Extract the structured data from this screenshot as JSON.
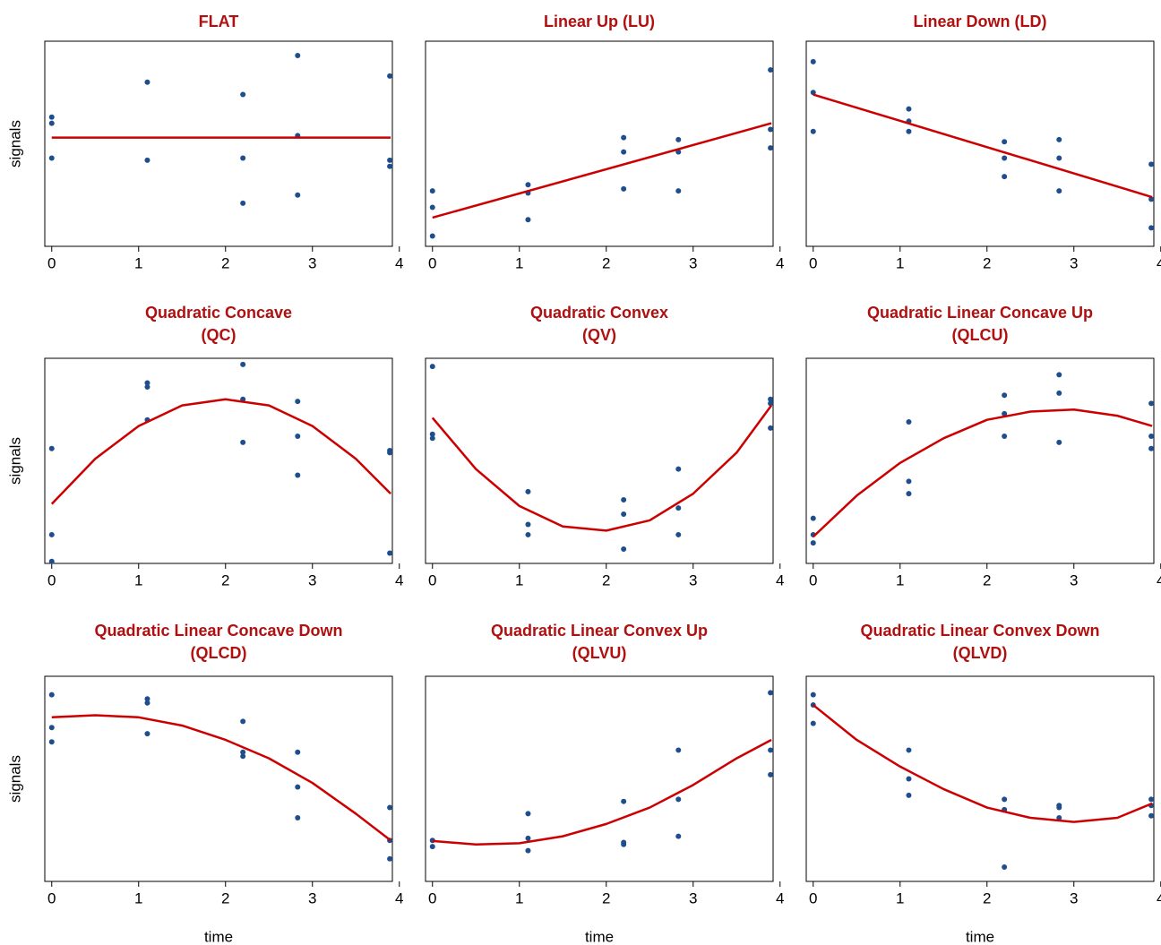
{
  "chart_data": [
    {
      "type": "scatter",
      "title": [
        "FLAT"
      ],
      "ylabel": "signals",
      "xlim": [
        -0.08,
        3.92
      ],
      "ylim": [
        0,
        10
      ],
      "xticks": [
        0,
        1,
        2,
        3,
        4
      ],
      "series": [
        {
          "color": "#1f4e8c",
          "x": [
            0,
            0,
            0,
            1.1,
            1.1,
            2.2,
            2.2,
            2.2,
            2.83,
            2.83,
            2.83,
            3.89,
            3.89,
            3.89
          ],
          "values": [
            6.3,
            6.0,
            4.3,
            8.0,
            4.2,
            7.4,
            4.3,
            2.1,
            9.3,
            5.4,
            2.5,
            8.3,
            4.2,
            3.9
          ]
        },
        {
          "type": "line",
          "color": "#cc0000",
          "x": [
            0,
            3.9
          ],
          "values": [
            5.3,
            5.3
          ]
        }
      ]
    },
    {
      "type": "scatter",
      "title": [
        "Linear Up (LU)"
      ],
      "xlim": [
        -0.08,
        3.92
      ],
      "ylim": [
        0,
        10
      ],
      "xticks": [
        0,
        1,
        2,
        3,
        4
      ],
      "series": [
        {
          "color": "#1f4e8c",
          "x": [
            0,
            0,
            0,
            1.1,
            1.1,
            1.1,
            2.2,
            2.2,
            2.2,
            2.83,
            2.83,
            2.83,
            3.89,
            3.89,
            3.89
          ],
          "values": [
            2.7,
            1.9,
            0.5,
            3.0,
            2.6,
            1.3,
            5.3,
            4.6,
            2.8,
            5.2,
            4.6,
            2.7,
            8.6,
            5.7,
            4.8
          ]
        },
        {
          "type": "line",
          "color": "#cc0000",
          "x": [
            0,
            3.9
          ],
          "values": [
            1.4,
            6.0
          ]
        }
      ]
    },
    {
      "type": "scatter",
      "title": [
        "Linear Down (LD)"
      ],
      "xlim": [
        -0.08,
        3.92
      ],
      "ylim": [
        0,
        10
      ],
      "xticks": [
        0,
        1,
        2,
        3,
        4
      ],
      "series": [
        {
          "color": "#1f4e8c",
          "x": [
            0,
            0,
            0,
            1.1,
            1.1,
            1.1,
            2.2,
            2.2,
            2.2,
            2.83,
            2.83,
            2.83,
            3.89,
            3.89,
            3.89
          ],
          "values": [
            9.0,
            7.5,
            5.6,
            6.7,
            6.1,
            5.6,
            5.1,
            4.3,
            3.4,
            5.2,
            4.3,
            2.7,
            4.0,
            2.3,
            0.9
          ]
        },
        {
          "type": "line",
          "color": "#cc0000",
          "x": [
            0,
            3.9
          ],
          "values": [
            7.4,
            2.4
          ]
        }
      ]
    },
    {
      "type": "scatter",
      "title": [
        "Quadratic Concave",
        "(QC)"
      ],
      "ylabel": "signals",
      "xlim": [
        -0.08,
        3.92
      ],
      "ylim": [
        0,
        10
      ],
      "xticks": [
        0,
        1,
        2,
        3,
        4
      ],
      "series": [
        {
          "color": "#1f4e8c",
          "x": [
            0,
            0,
            0,
            1.1,
            1.1,
            1.1,
            2.2,
            2.2,
            2.2,
            2.83,
            2.83,
            2.83,
            3.89,
            3.89,
            3.89
          ],
          "values": [
            5.6,
            1.4,
            0.1,
            8.8,
            8.6,
            7.0,
            9.7,
            8.0,
            5.9,
            7.9,
            6.2,
            4.3,
            5.5,
            5.4,
            0.5
          ]
        },
        {
          "type": "line",
          "color": "#cc0000",
          "x": [
            0,
            0.5,
            1,
            1.5,
            2,
            2.5,
            3,
            3.5,
            3.9
          ],
          "values": [
            2.9,
            5.1,
            6.7,
            7.7,
            8.0,
            7.7,
            6.7,
            5.1,
            3.4
          ]
        }
      ]
    },
    {
      "type": "scatter",
      "title": [
        "Quadratic Convex",
        "(QV)"
      ],
      "xlim": [
        -0.08,
        3.92
      ],
      "ylim": [
        0,
        10
      ],
      "xticks": [
        0,
        1,
        2,
        3,
        4
      ],
      "series": [
        {
          "color": "#1f4e8c",
          "x": [
            0,
            0,
            0,
            1.1,
            1.1,
            1.1,
            2.2,
            2.2,
            2.2,
            2.83,
            2.83,
            2.83,
            3.89,
            3.89,
            3.89
          ],
          "values": [
            9.6,
            6.3,
            6.1,
            3.5,
            1.9,
            1.4,
            3.1,
            2.4,
            0.7,
            4.6,
            2.7,
            1.4,
            8.0,
            7.8,
            6.6
          ]
        },
        {
          "type": "line",
          "color": "#cc0000",
          "x": [
            0,
            0.5,
            1,
            1.5,
            2,
            2.5,
            3,
            3.5,
            3.9
          ],
          "values": [
            7.1,
            4.6,
            2.8,
            1.8,
            1.6,
            2.1,
            3.4,
            5.4,
            7.7
          ]
        }
      ]
    },
    {
      "type": "scatter",
      "title": [
        "Quadratic Linear Concave Up",
        "(QLCU)"
      ],
      "xlim": [
        -0.08,
        3.92
      ],
      "ylim": [
        0,
        10
      ],
      "xticks": [
        0,
        1,
        2,
        3,
        4
      ],
      "series": [
        {
          "color": "#1f4e8c",
          "x": [
            0,
            0,
            0,
            1.1,
            1.1,
            1.1,
            2.2,
            2.2,
            2.2,
            2.83,
            2.83,
            2.83,
            3.89,
            3.89,
            3.89
          ],
          "values": [
            2.2,
            1.4,
            1.0,
            6.9,
            4.0,
            3.4,
            8.2,
            7.3,
            6.2,
            9.2,
            8.3,
            5.9,
            7.8,
            6.2,
            5.6
          ]
        },
        {
          "type": "line",
          "color": "#cc0000",
          "x": [
            0,
            0.5,
            1,
            1.5,
            2,
            2.5,
            3,
            3.5,
            3.9
          ],
          "values": [
            1.3,
            3.3,
            4.9,
            6.1,
            7.0,
            7.4,
            7.5,
            7.2,
            6.7
          ]
        }
      ]
    },
    {
      "type": "scatter",
      "title": [
        "Quadratic Linear Concave Down",
        "(QLCD)"
      ],
      "ylabel": "signals",
      "xlabel": "time",
      "xlim": [
        -0.08,
        3.92
      ],
      "ylim": [
        0,
        10
      ],
      "xticks": [
        0,
        1,
        2,
        3,
        4
      ],
      "series": [
        {
          "color": "#1f4e8c",
          "x": [
            0,
            0,
            0,
            1.1,
            1.1,
            1.1,
            2.2,
            2.2,
            2.2,
            2.83,
            2.83,
            2.83,
            3.89,
            3.89,
            3.89
          ],
          "values": [
            9.1,
            7.5,
            6.8,
            8.9,
            8.7,
            7.2,
            7.8,
            6.3,
            6.1,
            6.3,
            4.6,
            3.1,
            3.6,
            2.0,
            1.1
          ]
        },
        {
          "type": "line",
          "color": "#cc0000",
          "x": [
            0,
            0.5,
            1,
            1.5,
            2,
            2.5,
            3,
            3.5,
            3.9
          ],
          "values": [
            8.0,
            8.1,
            8.0,
            7.6,
            6.9,
            6.0,
            4.8,
            3.3,
            2.0
          ]
        }
      ]
    },
    {
      "type": "scatter",
      "title": [
        "Quadratic Linear Convex Up",
        "(QLVU)"
      ],
      "xlabel": "time",
      "xlim": [
        -0.08,
        3.92
      ],
      "ylim": [
        0,
        10
      ],
      "xticks": [
        0,
        1,
        2,
        3,
        4
      ],
      "series": [
        {
          "color": "#1f4e8c",
          "x": [
            0,
            0,
            1.1,
            1.1,
            1.1,
            2.2,
            2.2,
            2.2,
            2.83,
            2.83,
            2.83,
            3.89,
            3.89,
            3.89
          ],
          "values": [
            2.0,
            1.7,
            3.3,
            2.1,
            1.5,
            3.9,
            1.9,
            1.8,
            6.4,
            4.0,
            2.2,
            9.2,
            6.4,
            5.2
          ]
        },
        {
          "type": "line",
          "color": "#cc0000",
          "x": [
            0,
            0.5,
            1,
            1.5,
            2,
            2.5,
            3,
            3.5,
            3.9
          ],
          "values": [
            1.97,
            1.8,
            1.86,
            2.2,
            2.8,
            3.6,
            4.7,
            6.0,
            6.9
          ]
        }
      ]
    },
    {
      "type": "scatter",
      "title": [
        "Quadratic Linear Convex Down",
        "(QLVD)"
      ],
      "xlabel": "time",
      "xlim": [
        -0.08,
        3.92
      ],
      "ylim": [
        0,
        10
      ],
      "xticks": [
        0,
        1,
        2,
        3,
        4
      ],
      "series": [
        {
          "color": "#1f4e8c",
          "x": [
            0,
            0,
            0,
            1.1,
            1.1,
            1.1,
            2.2,
            2.2,
            2.2,
            2.83,
            2.83,
            2.83,
            3.89,
            3.89,
            3.89
          ],
          "values": [
            9.1,
            8.6,
            7.7,
            6.4,
            5.0,
            4.2,
            4.0,
            3.5,
            0.7,
            3.7,
            3.6,
            3.1,
            4.0,
            3.7,
            3.2
          ]
        },
        {
          "type": "line",
          "color": "#cc0000",
          "x": [
            0,
            0.5,
            1,
            1.5,
            2,
            2.5,
            3,
            3.5,
            3.9
          ],
          "values": [
            8.6,
            6.9,
            5.6,
            4.5,
            3.6,
            3.1,
            2.9,
            3.1,
            3.8
          ]
        }
      ]
    }
  ]
}
